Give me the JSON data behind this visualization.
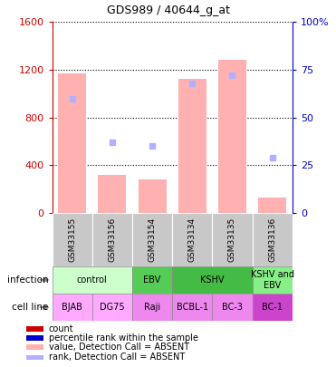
{
  "title": "GDS989 / 40644_g_at",
  "samples": [
    "GSM33155",
    "GSM33156",
    "GSM33154",
    "GSM33134",
    "GSM33135",
    "GSM33136"
  ],
  "bar_values": [
    1170,
    320,
    280,
    1120,
    1280,
    130
  ],
  "rank_values": [
    60,
    37,
    35,
    68,
    72,
    29
  ],
  "ylim_left": [
    0,
    1600
  ],
  "ylim_right": [
    0,
    100
  ],
  "yticks_left": [
    0,
    400,
    800,
    1200,
    1600
  ],
  "yticks_right": [
    0,
    25,
    50,
    75,
    100
  ],
  "yticklabels_right": [
    "0",
    "25",
    "50",
    "75",
    "100%"
  ],
  "bar_color": "#ffb0b0",
  "rank_color": "#b0b0ff",
  "left_axis_color": "#cc0000",
  "right_axis_color": "#0000cc",
  "infection_groups": [
    {
      "label": "control",
      "start": 0,
      "end": 2,
      "color": "#ccffcc"
    },
    {
      "label": "EBV",
      "start": 2,
      "end": 3,
      "color": "#55cc55"
    },
    {
      "label": "KSHV",
      "start": 3,
      "end": 5,
      "color": "#44bb44"
    },
    {
      "label": "KSHV and\nEBV",
      "start": 5,
      "end": 6,
      "color": "#88ee88"
    }
  ],
  "cell_lines": [
    {
      "label": "BJAB",
      "start": 0,
      "end": 1,
      "color": "#ffaaff"
    },
    {
      "label": "DG75",
      "start": 1,
      "end": 2,
      "color": "#ffaaff"
    },
    {
      "label": "Raji",
      "start": 2,
      "end": 3,
      "color": "#ee88ee"
    },
    {
      "label": "BCBL-1",
      "start": 3,
      "end": 4,
      "color": "#ee88ee"
    },
    {
      "label": "BC-3",
      "start": 4,
      "end": 5,
      "color": "#ee88ee"
    },
    {
      "label": "BC-1",
      "start": 5,
      "end": 6,
      "color": "#cc44cc"
    }
  ],
  "legend_items": [
    {
      "color": "#cc0000",
      "label": "count"
    },
    {
      "color": "#0000cc",
      "label": "percentile rank within the sample"
    },
    {
      "color": "#ffb0b0",
      "label": "value, Detection Call = ABSENT"
    },
    {
      "color": "#b0b0ff",
      "label": "rank, Detection Call = ABSENT"
    }
  ],
  "sample_box_color": "#c8c8c8",
  "grid_color": "#000000"
}
